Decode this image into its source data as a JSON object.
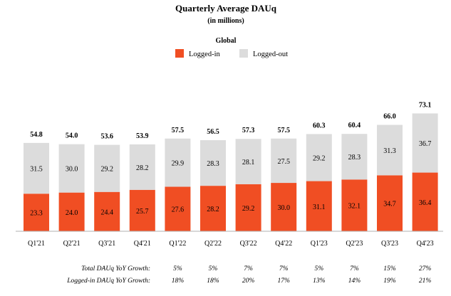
{
  "chart_data": {
    "type": "bar",
    "title": "Quarterly Average DAUq",
    "subtitle": "(in millions)",
    "region": "Global",
    "categories": [
      "Q1'21",
      "Q2'21",
      "Q3'21",
      "Q4'21",
      "Q1'22",
      "Q2'22",
      "Q3'22",
      "Q4'22",
      "Q1'23",
      "Q2'23",
      "Q3'23",
      "Q4'23"
    ],
    "series": [
      {
        "name": "Logged-in",
        "color": "#f04e23",
        "values": [
          23.3,
          24.0,
          24.4,
          25.7,
          27.6,
          28.2,
          29.2,
          30.0,
          31.1,
          32.1,
          34.7,
          36.4
        ],
        "labels": [
          "23.3",
          "24.0",
          "24.4",
          "25.7",
          "27.6",
          "28.2",
          "29.2",
          "30.0",
          "31.1",
          "32.1",
          "34.7",
          "36.4"
        ]
      },
      {
        "name": "Logged-out",
        "color": "#dcdcdc",
        "values": [
          31.5,
          30.0,
          29.2,
          28.2,
          29.9,
          28.3,
          28.1,
          27.5,
          29.2,
          28.3,
          31.3,
          36.7
        ],
        "labels": [
          "31.5",
          "30.0",
          "29.2",
          "28.2",
          "29.9",
          "28.3",
          "28.1",
          "27.5",
          "29.2",
          "28.3",
          "31.3",
          "36.7"
        ]
      }
    ],
    "totals": [
      54.8,
      54.0,
      53.6,
      53.9,
      57.5,
      56.5,
      57.3,
      57.5,
      60.3,
      60.4,
      66.0,
      73.1
    ],
    "total_labels": [
      "54.8",
      "54.0",
      "53.6",
      "53.9",
      "57.5",
      "56.5",
      "57.3",
      "57.5",
      "60.3",
      "60.4",
      "66.0",
      "73.1"
    ],
    "stacked": true,
    "ylim": [
      0,
      80
    ],
    "legend_position": "top-center",
    "grid": false
  },
  "growth_rows": [
    {
      "label": "Total DAUq YoY Growth:",
      "values": [
        "5%",
        "5%",
        "7%",
        "7%",
        "5%",
        "7%",
        "15%",
        "27%"
      ]
    },
    {
      "label": "Logged-in DAUq YoY Growth:",
      "values": [
        "18%",
        "18%",
        "20%",
        "17%",
        "13%",
        "14%",
        "19%",
        "21%"
      ]
    }
  ]
}
